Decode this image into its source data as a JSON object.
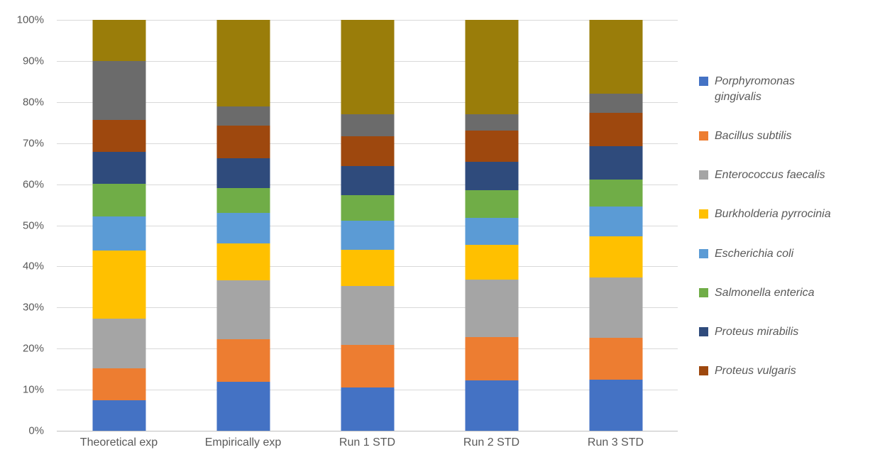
{
  "chart_data": {
    "type": "bar",
    "subtype": "stacked-100-percent",
    "title": "",
    "xlabel": "",
    "ylabel": "",
    "ylim": [
      0,
      100
    ],
    "grid": true,
    "legend_position": "right",
    "categories": [
      "Theoretical exp",
      "Empirically exp",
      "Run 1 STD",
      "Run 2 STD",
      "Run 3 STD"
    ],
    "yticks": [
      "100%",
      "90%",
      "80%",
      "70%",
      "60%",
      "50%",
      "40%",
      "30%",
      "20%",
      "10%",
      "0%"
    ],
    "series": [
      {
        "name": "Porphyromonas gingivalis",
        "color": "#4472C4",
        "in_legend": true,
        "values": [
          7.5,
          12.0,
          10.6,
          12.2,
          12.4
        ]
      },
      {
        "name": "Bacillus subtilis",
        "color": "#ED7D31",
        "in_legend": true,
        "values": [
          7.7,
          10.2,
          10.3,
          10.6,
          10.3
        ]
      },
      {
        "name": "Enterococcus faecalis",
        "color": "#A5A5A5",
        "in_legend": true,
        "values": [
          12.1,
          14.4,
          14.3,
          14.0,
          14.6
        ]
      },
      {
        "name": "Burkholderia pyrrocinia",
        "color": "#FFC000",
        "in_legend": true,
        "values": [
          16.6,
          9.0,
          8.8,
          8.4,
          10.1
        ]
      },
      {
        "name": "Escherichia coli",
        "color": "#5B9BD5",
        "in_legend": true,
        "values": [
          8.2,
          7.4,
          7.2,
          6.6,
          7.2
        ]
      },
      {
        "name": "Salmonella enterica",
        "color": "#70AD47",
        "in_legend": true,
        "values": [
          8.0,
          6.0,
          6.2,
          6.8,
          6.6
        ]
      },
      {
        "name": "Proteus mirabilis",
        "color": "#2F4B7C",
        "in_legend": true,
        "values": [
          7.7,
          7.3,
          7.0,
          6.8,
          8.0
        ]
      },
      {
        "name": "Proteus vulgaris",
        "color": "#9E480E",
        "in_legend": true,
        "values": [
          7.9,
          7.9,
          7.3,
          7.6,
          8.2
        ]
      },
      {
        "name": "unlabeled-series-dark-gray",
        "color": "#6B6B6B",
        "in_legend": false,
        "values": [
          14.3,
          4.8,
          5.4,
          4.0,
          4.6
        ]
      },
      {
        "name": "unlabeled-series-dark-gold",
        "color": "#9A7D0A",
        "in_legend": false,
        "values": [
          10.0,
          21.0,
          22.9,
          23.0,
          18.0
        ]
      }
    ],
    "colors": {
      "background": "#FFFFFF",
      "gridline": "#D9D9D9",
      "axis_line": "#BFBFBF",
      "tick_text": "#595959",
      "legend_text": "#595959"
    }
  }
}
